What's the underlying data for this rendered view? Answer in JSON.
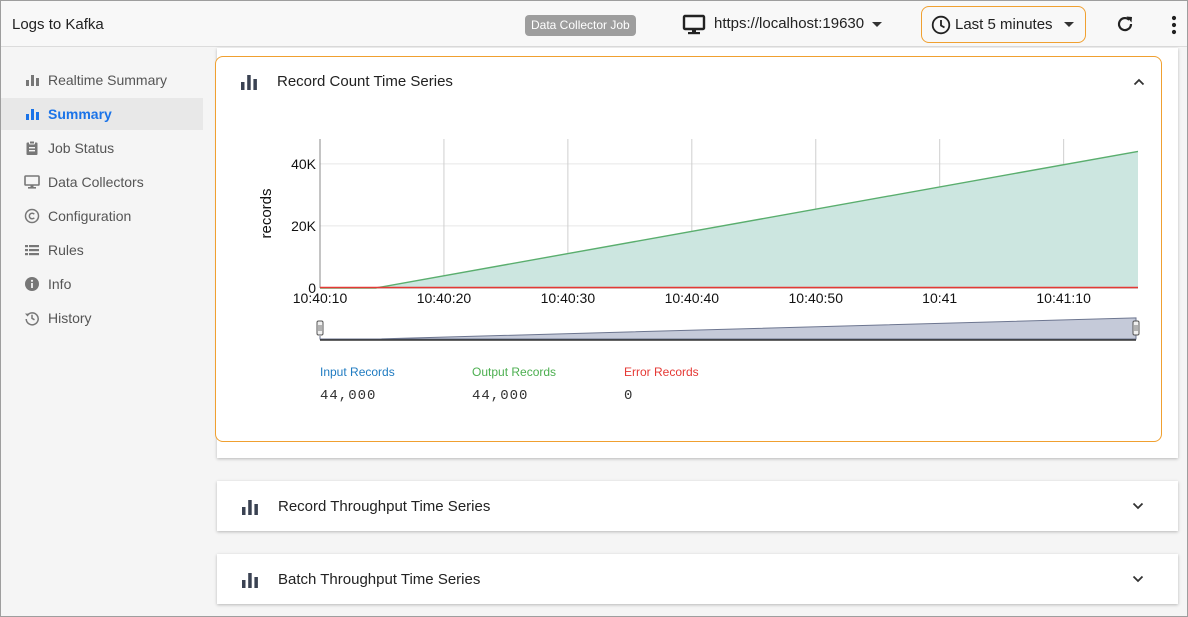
{
  "header": {
    "app_title": "Logs to Kafka",
    "badge": "Data Collector Job",
    "url": "https://localhost:19630",
    "time_range": "Last 5 minutes",
    "icons": {
      "monitor": "monitor-icon",
      "clock": "clock-icon",
      "refresh": "refresh-icon",
      "more": "more-vert-icon"
    }
  },
  "sidebar": {
    "items": [
      {
        "label": "Realtime Summary",
        "icon": "bar-chart-icon",
        "active": false
      },
      {
        "label": "Summary",
        "icon": "bar-chart-icon",
        "active": true
      },
      {
        "label": "Job Status",
        "icon": "clipboard-icon",
        "active": false
      },
      {
        "label": "Data Collectors",
        "icon": "monitor-icon",
        "active": false
      },
      {
        "label": "Configuration",
        "icon": "copyright-icon",
        "active": false
      },
      {
        "label": "Rules",
        "icon": "list-icon",
        "active": false
      },
      {
        "label": "Info",
        "icon": "info-icon",
        "active": false
      },
      {
        "label": "History",
        "icon": "history-icon",
        "active": false
      }
    ]
  },
  "panels": [
    {
      "title": "Record Count Time Series",
      "expanded": true
    },
    {
      "title": "Record Throughput Time Series",
      "expanded": false
    },
    {
      "title": "Batch Throughput Time Series",
      "expanded": false
    }
  ],
  "legend": [
    {
      "label": "Input Records",
      "value": "44,000",
      "color": "#1f7bc1"
    },
    {
      "label": "Output Records",
      "value": "44,000",
      "color": "#4caf50"
    },
    {
      "label": "Error Records",
      "value": "0",
      "color": "#e53935"
    }
  ],
  "colors": {
    "accent": "#1a73e8",
    "highlight": "#f0a030",
    "area_fill": "#cce6e0",
    "area_line": "#5aae6e",
    "error_line": "#e53935"
  },
  "chart_data": {
    "type": "area",
    "ylabel": "records",
    "x_ticks": [
      "10:40:10",
      "10:40:20",
      "10:40:30",
      "10:40:40",
      "10:40:50",
      "10:41",
      "10:41:10"
    ],
    "y_ticks": [
      "0",
      "20K",
      "40K"
    ],
    "xlim_seconds": [
      0,
      66
    ],
    "ylim": [
      0,
      48000
    ],
    "series": [
      {
        "name": "Output Records",
        "x_seconds": [
          0,
          4.5,
          66
        ],
        "values": [
          0,
          0,
          44000
        ]
      },
      {
        "name": "Error Records",
        "x_seconds": [
          0,
          66
        ],
        "values": [
          0,
          0
        ]
      }
    ]
  }
}
